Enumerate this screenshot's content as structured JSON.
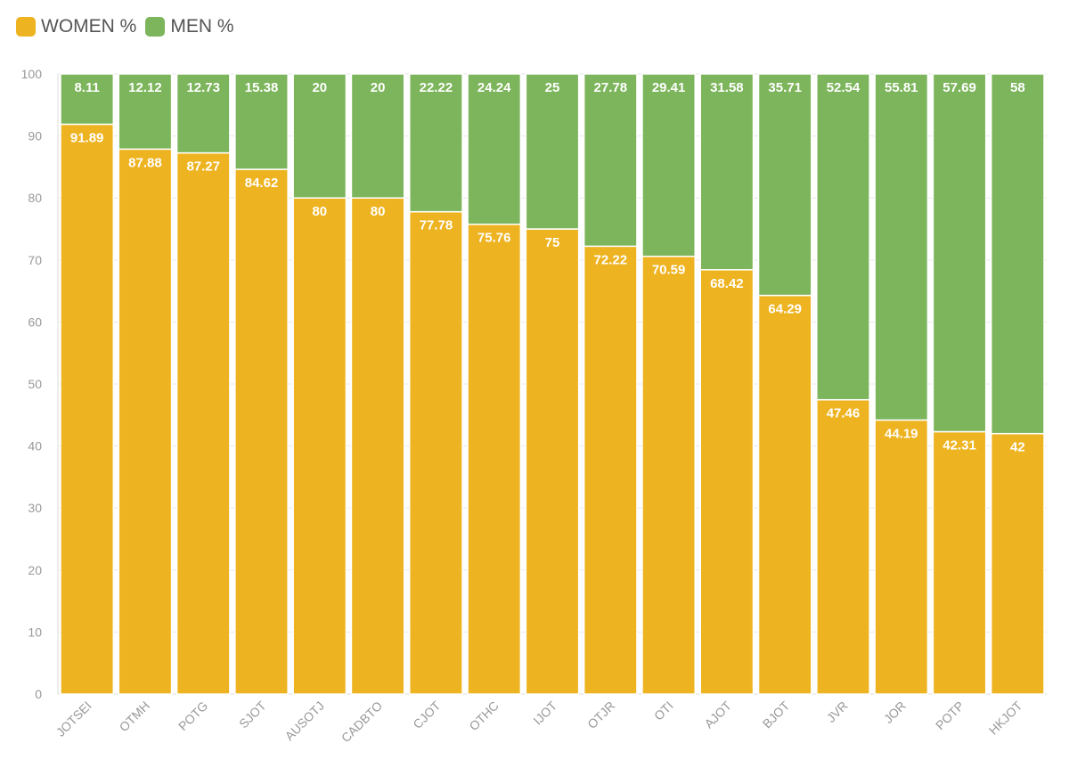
{
  "chart_data": {
    "type": "bar",
    "stacked": true,
    "title": "",
    "xlabel": "",
    "ylabel": "",
    "ylim": [
      0,
      100
    ],
    "yticks": [
      0,
      10,
      20,
      30,
      40,
      50,
      60,
      70,
      80,
      90,
      100
    ],
    "grid": true,
    "legend_position": "top-left",
    "categories": [
      "JOTSEI",
      "OTMH",
      "POTG",
      "SJOT",
      "AUSOTJ",
      "CADBTO",
      "CJOT",
      "OTHC",
      "IJOT",
      "OTJR",
      "OTI",
      "AJOT",
      "BJOT",
      "JVR",
      "JOR",
      "POTP",
      "HKJOT"
    ],
    "series": [
      {
        "name": "WOMEN %",
        "color": "#EEB320",
        "values": [
          91.89,
          87.88,
          87.27,
          84.62,
          80,
          80,
          77.78,
          75.76,
          75,
          72.22,
          70.59,
          68.42,
          64.29,
          47.46,
          44.19,
          42.31,
          42
        ]
      },
      {
        "name": "MEN %",
        "color": "#7CB55B",
        "values": [
          8.11,
          12.12,
          12.73,
          15.38,
          20,
          20,
          22.22,
          24.24,
          25,
          27.78,
          29.41,
          31.58,
          35.71,
          52.54,
          55.81,
          57.69,
          58
        ]
      }
    ]
  }
}
